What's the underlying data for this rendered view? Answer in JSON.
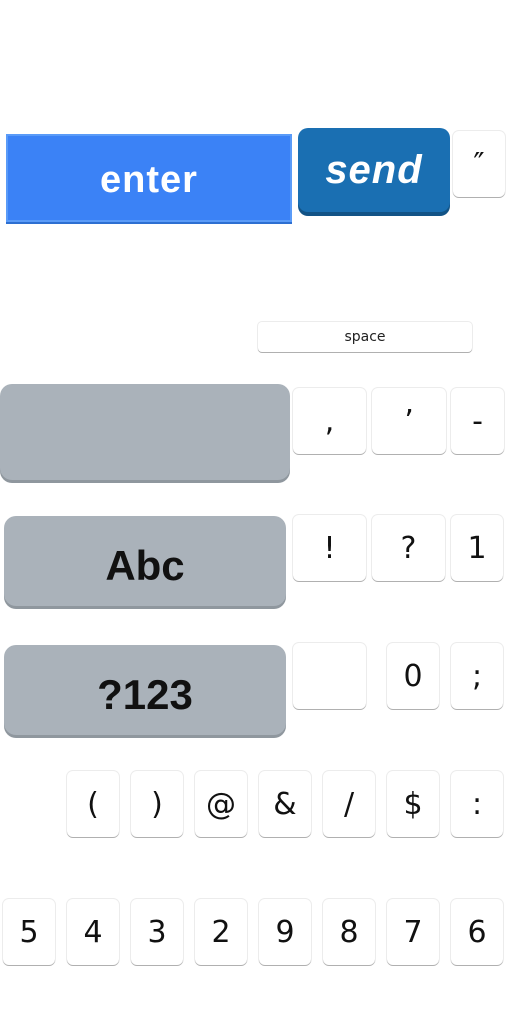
{
  "action_keys": {
    "enter": "enter",
    "send": "send",
    "quote": "″"
  },
  "space_key": {
    "label": "space"
  },
  "mode_keys": {
    "blank": "",
    "abc": "Abc",
    "numbers": "?123"
  },
  "row_punct_1": [
    ",",
    "’",
    "-"
  ],
  "row_punct_2": [
    "!",
    "?",
    "1"
  ],
  "row_punct_3": [
    "",
    "0",
    ";"
  ],
  "row_symbols": [
    "(",
    ")",
    "@",
    "&",
    "/",
    "$",
    ":"
  ],
  "row_digits": [
    "5",
    "4",
    "3",
    "2",
    "9",
    "8",
    "7",
    "6"
  ]
}
